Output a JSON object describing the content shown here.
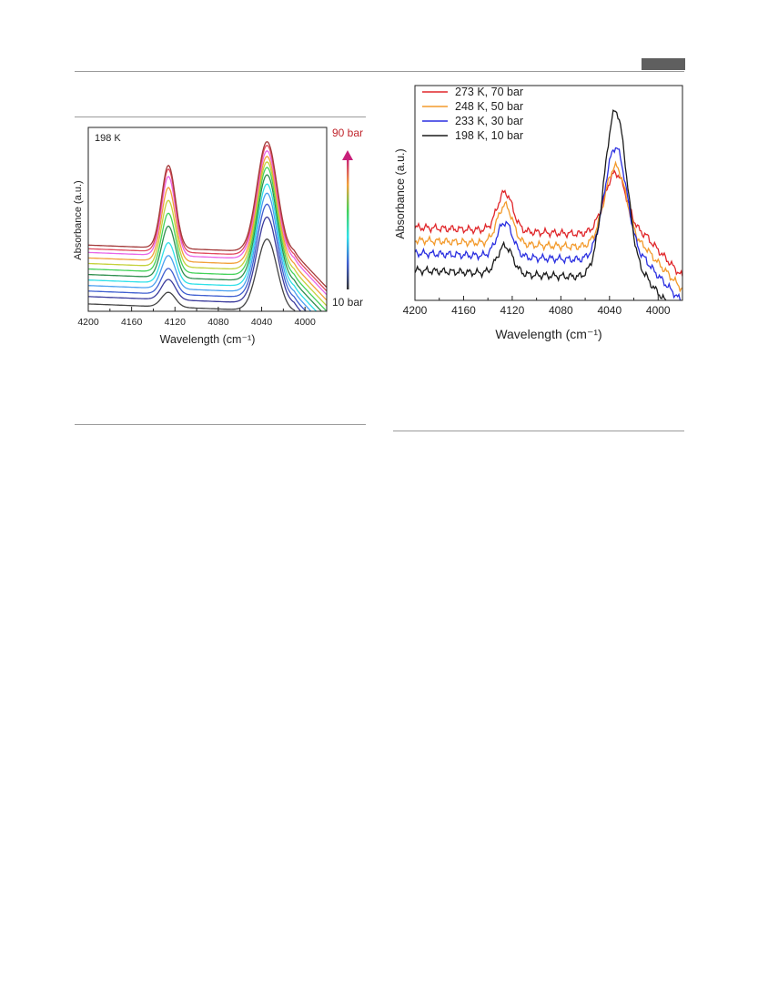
{
  "chart_data": [
    {
      "type": "line",
      "xlabel": "Wavelength (cm⁻¹)",
      "ylabel": "Absorbance (a.u.)",
      "xlim": [
        4200,
        3980
      ],
      "xticks": [
        4200,
        4160,
        4120,
        4080,
        4040,
        4000
      ],
      "x_reversed": true,
      "y_ticks_shown": false,
      "annotation": "198 K",
      "colorbar": {
        "top_label": "90 bar",
        "bottom_label": "10 bar"
      },
      "series": [
        {
          "color": "#444444",
          "peak1": 0.12,
          "peak2": 0.43,
          "base": 0.04
        },
        {
          "color": "#3b3b9c",
          "peak1": 0.19,
          "peak2": 0.55,
          "base": 0.08
        },
        {
          "color": "#3f5fd0",
          "peak1": 0.25,
          "peak2": 0.62,
          "base": 0.11
        },
        {
          "color": "#4aa0f0",
          "peak1": 0.32,
          "peak2": 0.68,
          "base": 0.14
        },
        {
          "color": "#30e0e8",
          "peak1": 0.39,
          "peak2": 0.73,
          "base": 0.17
        },
        {
          "color": "#2f8f4f",
          "peak1": 0.48,
          "peak2": 0.78,
          "base": 0.2
        },
        {
          "color": "#44d25a",
          "peak1": 0.55,
          "peak2": 0.82,
          "base": 0.23
        },
        {
          "color": "#c4d13a",
          "peak1": 0.62,
          "peak2": 0.85,
          "base": 0.26
        },
        {
          "color": "#f2a03a",
          "peak1": 0.69,
          "peak2": 0.88,
          "base": 0.29
        },
        {
          "color": "#e865e8",
          "peak1": 0.75,
          "peak2": 0.91,
          "base": 0.32
        },
        {
          "color": "#e04b5e",
          "peak1": 0.79,
          "peak2": 0.94,
          "base": 0.34
        },
        {
          "color": "#a33a3a",
          "peak1": 0.81,
          "peak2": 0.96,
          "base": 0.36
        }
      ]
    },
    {
      "type": "line",
      "xlabel": "Wavelength (cm⁻¹)",
      "ylabel": "Absorbance (a.u.)",
      "xlim": [
        4200,
        3980
      ],
      "xticks": [
        4200,
        4160,
        4120,
        4080,
        4040,
        4000
      ],
      "x_reversed": true,
      "y_ticks_shown": false,
      "legend_position": "top-left",
      "series": [
        {
          "name": "273 K, 70 bar",
          "color": "#e0262a",
          "peak1": 0.52,
          "peak2": 0.63,
          "base": 0.34
        },
        {
          "name": "248 K, 50 bar",
          "color": "#f39a2b",
          "peak1": 0.46,
          "peak2": 0.66,
          "base": 0.28
        },
        {
          "name": "233 K, 30 bar",
          "color": "#2a2fe0",
          "peak1": 0.38,
          "peak2": 0.75,
          "base": 0.22
        },
        {
          "name": "198 K, 10 bar",
          "color": "#1a1a1a",
          "peak1": 0.27,
          "peak2": 0.92,
          "base": 0.14
        }
      ]
    }
  ]
}
